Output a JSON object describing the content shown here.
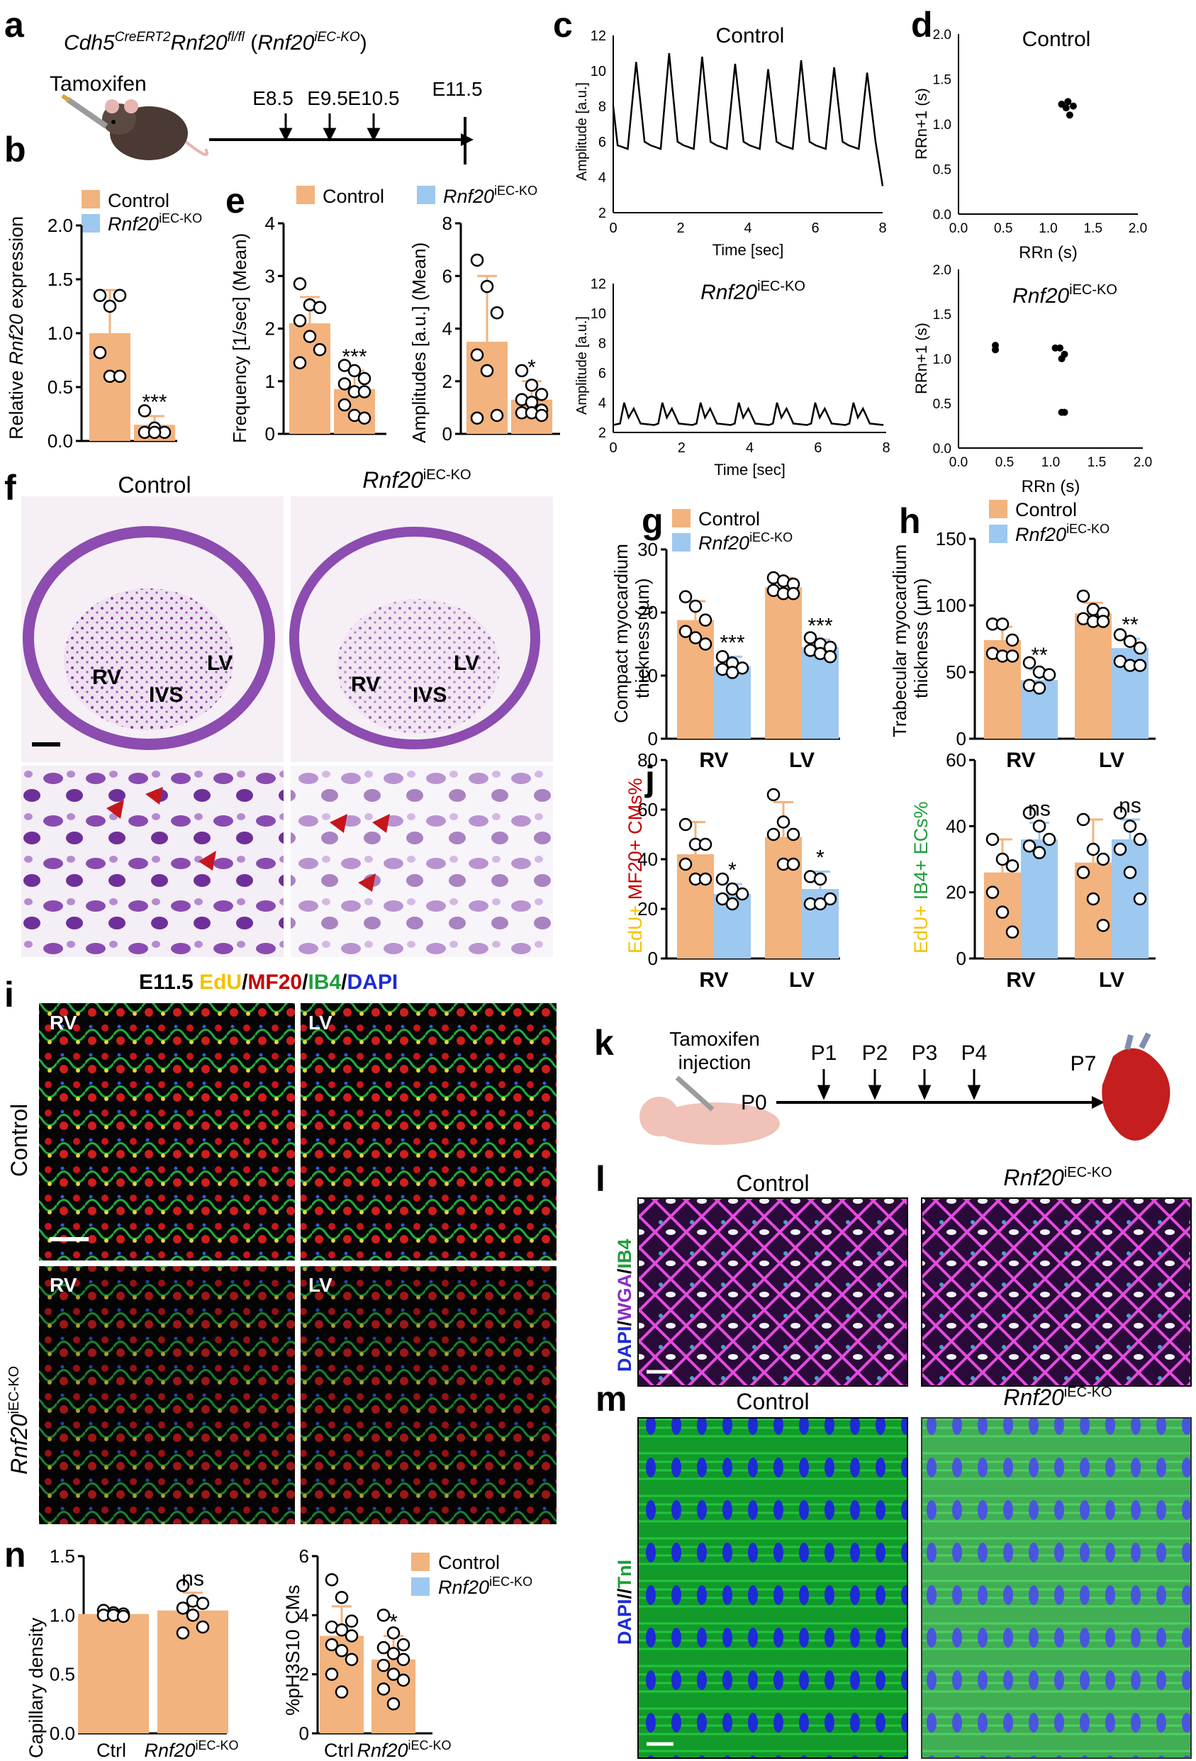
{
  "colors": {
    "control": "#F2B37E",
    "ko": "#9DC8F0",
    "edu": "#F2C200",
    "mf20": "#C40000",
    "ib4": "#1E9E3A",
    "dapi": "#1E2BD8",
    "wga": "#8B2FC9"
  },
  "panels": {
    "a": "a",
    "b": "b",
    "c": "c",
    "d": "d",
    "e": "e",
    "f": "f",
    "g": "g",
    "h": "h",
    "i": "i",
    "j": "j",
    "k": "k",
    "l": "l",
    "m": "m",
    "n": "n"
  },
  "panel_a": {
    "genotype_italic": "Cdh5",
    "genotype_sup1": "CreERT2",
    "genotype_mid": "Rnf20",
    "genotype_sup2": "fl/fl",
    "genotype_paren_open": " (",
    "genotype_paren_gene": "Rnf20",
    "genotype_paren_sup": "iEC-KO",
    "genotype_paren_close": ")",
    "tamoxifen": "Tamoxifen",
    "timepoints": [
      "E8.5",
      "E9.5",
      "E10.5"
    ],
    "endpoint": "E11.5"
  },
  "legend": {
    "control": "Control",
    "ko_gene": "Rnf20",
    "ko_sup": "iEC-KO"
  },
  "panel_b": {
    "ylabel_pre": "Relative ",
    "ylabel_gene": "Rnf20",
    "ylabel_post": " expression",
    "yticks": [
      "0.0",
      "0.5",
      "1.0",
      "1.5",
      "2.0"
    ],
    "sig": "***"
  },
  "panel_e": {
    "ylabel_freq": "Frequency [1/sec] (Mean)",
    "yticks_freq": [
      "0",
      "1",
      "2",
      "3",
      "4"
    ],
    "sig_freq": "***",
    "ylabel_amp": "Amplitudes [a.u.] (Mean)",
    "yticks_amp": [
      "0",
      "2",
      "4",
      "6",
      "8"
    ],
    "sig_amp": "*"
  },
  "panel_c": {
    "title_control": "Control",
    "title_ko_gene": "Rnf20",
    "title_ko_sup": "iEC-KO",
    "ylabel": "Amplitude [a.u.]",
    "xlabel": "Time [sec]",
    "yticks": [
      "2",
      "4",
      "6",
      "8",
      "10",
      "12"
    ],
    "xticks": [
      "0",
      "2",
      "4",
      "6",
      "8"
    ]
  },
  "panel_d": {
    "title_control": "Control",
    "title_ko_gene": "Rnf20",
    "title_ko_sup": "iEC-KO",
    "ylabel": "RRn+1 (s)",
    "xlabel": "RRn (s)",
    "ticks": [
      "0.0",
      "0.5",
      "1.0",
      "1.5",
      "2.0"
    ]
  },
  "panel_f": {
    "title_control": "Control",
    "title_ko_gene": "Rnf20",
    "title_ko_sup": "iEC-KO",
    "labels": [
      "RV",
      "IVS",
      "LV"
    ]
  },
  "panel_g": {
    "ylabel1": "Compact myocardium",
    "ylabel2": "thickness (µm)",
    "yticks": [
      "0",
      "10",
      "20",
      "30"
    ],
    "categories": [
      "RV",
      "LV"
    ],
    "sig": [
      "***",
      "***"
    ]
  },
  "panel_h": {
    "ylabel1": "Trabecular myocardium",
    "ylabel2": "thickness (µm)",
    "yticks": [
      "0",
      "50",
      "100",
      "150"
    ],
    "categories": [
      "RV",
      "LV"
    ],
    "sig": [
      "**",
      "**"
    ]
  },
  "panel_j": {
    "ylabel_edu": "EdU+ ",
    "ylabel_mf20": "MF20+ ",
    "ylabel_cms": "CMs%",
    "yticks": [
      "0",
      "20",
      "40",
      "60",
      "80"
    ],
    "categories": [
      "RV",
      "LV"
    ],
    "sig": [
      "*",
      "*"
    ]
  },
  "panel_j2": {
    "ylabel_edu": "EdU+ ",
    "ylabel_ib4": "IB4+ ",
    "ylabel_ecs": "ECs%",
    "yticks": [
      "0",
      "20",
      "40",
      "60"
    ],
    "categories": [
      "RV",
      "LV"
    ],
    "sig": [
      "ns",
      "ns"
    ]
  },
  "panel_i": {
    "title_stage": "E11.5 ",
    "title_edu": "EdU",
    "title_mf20": "MF20",
    "title_ib4": "IB4",
    "title_dapi": "DAPI",
    "slash": "/",
    "row_control": "Control",
    "row_ko_gene": "Rnf20",
    "row_ko_sup": "iEC-KO",
    "tiles": [
      "RV",
      "LV",
      "RV",
      "LV"
    ]
  },
  "panel_k": {
    "injection1": "Tamoxifen",
    "injection2": "injection",
    "p0": "P0",
    "timepoints": [
      "P1",
      "P2",
      "P3",
      "P4"
    ],
    "endpoint": "P7"
  },
  "panel_l": {
    "title_control": "Control",
    "title_ko_gene": "Rnf20",
    "title_ko_sup": "iEC-KO",
    "side_dapi": "DAPI",
    "side_wga": "WGA",
    "side_ib4": "IB4",
    "slash": "/"
  },
  "panel_m": {
    "title_control": "Control",
    "title_ko_gene": "Rnf20",
    "title_ko_sup": "iEC-KO",
    "side_dapi": "DAPI",
    "side_tni": "TnI",
    "slash": "//"
  },
  "panel_n": {
    "ylabel_cap": "Capillary density",
    "yticks_cap": [
      "0.0",
      "0.5",
      "1.0",
      "1.5"
    ],
    "sig_cap": "ns",
    "xcat_ctrl": "Ctrl",
    "xcat_ko_gene": "Rnf20",
    "xcat_ko_sup": "iEC-KO",
    "ylabel_h3": "%pH3S10 CMs",
    "yticks_h3": [
      "0",
      "2",
      "4",
      "6"
    ],
    "sig_h3": "*"
  },
  "chart_data": [
    {
      "id": "b",
      "type": "bar",
      "categories": [
        "Control",
        "Rnf20 iEC-KO"
      ],
      "values": [
        1.0,
        0.15
      ],
      "errors": [
        0.4,
        0.08
      ],
      "ylim": [
        0,
        2
      ],
      "points": [
        [
          1.35,
          1.25,
          1.35,
          0.82,
          0.6,
          0.6
        ],
        [
          0.28,
          0.12,
          0.08,
          0.08,
          0.08
        ]
      ]
    },
    {
      "id": "e1",
      "type": "bar",
      "categories": [
        "Control",
        "Rnf20 iEC-KO"
      ],
      "values": [
        2.1,
        0.85
      ],
      "errors": [
        0.5,
        0.35
      ],
      "ylim": [
        0,
        4
      ],
      "points": [
        [
          2.85,
          2.45,
          2.4,
          2.15,
          1.85,
          1.6,
          1.35
        ],
        [
          1.3,
          1.2,
          1.05,
          0.95,
          0.8,
          0.8,
          0.55,
          0.35,
          0.3
        ]
      ]
    },
    {
      "id": "e2",
      "type": "bar",
      "categories": [
        "Control",
        "Rnf20 iEC-KO"
      ],
      "values": [
        3.5,
        1.3
      ],
      "errors": [
        2.5,
        0.7
      ],
      "ylim": [
        0,
        8
      ],
      "points": [
        [
          6.6,
          5.6,
          4.6,
          3.0,
          2.4,
          0.7,
          0.6
        ],
        [
          2.4,
          1.85,
          1.5,
          1.3,
          1.2,
          0.9,
          0.8,
          0.8,
          0.7
        ]
      ]
    },
    {
      "id": "c_control",
      "type": "line",
      "x_range": [
        0,
        8
      ],
      "ylim": [
        2,
        12
      ],
      "series": [
        {
          "values": "periodic, ~8 beats, peaks ~9.5-11, troughs ~5.5"
        }
      ]
    },
    {
      "id": "c_ko",
      "type": "line",
      "x_range": [
        0,
        8
      ],
      "ylim": [
        2,
        12
      ],
      "series": [
        {
          "values": "periodic, ~7 beats, peaks ~3.7-4.1, baseline ~2.5"
        }
      ]
    },
    {
      "id": "d_control",
      "type": "scatter",
      "xlim": [
        0,
        2
      ],
      "ylim": [
        0,
        2
      ],
      "x": [
        1.15,
        1.2,
        1.22,
        1.28,
        1.24
      ],
      "y": [
        1.22,
        1.18,
        1.25,
        1.2,
        1.1
      ]
    },
    {
      "id": "d_ko",
      "type": "scatter",
      "xlim": [
        0,
        2
      ],
      "ylim": [
        0,
        2
      ],
      "x": [
        0.4,
        0.4,
        1.05,
        1.1,
        1.12,
        1.12,
        1.15,
        1.15
      ],
      "y": [
        1.15,
        1.1,
        1.12,
        1.12,
        1.0,
        0.4,
        1.05,
        0.4
      ]
    },
    {
      "id": "g",
      "type": "bar",
      "categories": [
        "RV",
        "LV"
      ],
      "series": [
        {
          "name": "Control",
          "values": [
            18.8,
            24
          ],
          "errors": [
            3,
            1.5
          ]
        },
        {
          "name": "Rnf20 iEC-KO",
          "values": [
            11.5,
            14.5
          ],
          "errors": [
            1.5,
            1.2
          ]
        }
      ],
      "ylim": [
        0,
        30
      ],
      "points": [
        [
          [
            22.5,
            21,
            18.8,
            17,
            16,
            15
          ],
          [
            25.5,
            25,
            24.5,
            23.5,
            23,
            23
          ]
        ],
        [
          [
            13,
            12,
            11.2,
            11,
            10.5
          ],
          [
            16,
            15,
            14.5,
            14,
            13.5,
            13
          ]
        ]
      ]
    },
    {
      "id": "h",
      "type": "bar",
      "categories": [
        "RV",
        "LV"
      ],
      "series": [
        {
          "name": "Control",
          "values": [
            74,
            94
          ],
          "errors": [
            10,
            8
          ]
        },
        {
          "name": "Rnf20 iEC-KO",
          "values": [
            44,
            68
          ],
          "errors": [
            8,
            7
          ]
        }
      ],
      "ylim": [
        0,
        150
      ],
      "points": [
        [
          [
            86,
            86,
            74,
            64,
            62,
            62
          ],
          [
            107,
            97,
            94,
            90,
            88,
            88
          ]
        ],
        [
          [
            57,
            50,
            48,
            40,
            38
          ],
          [
            78,
            73,
            68,
            58,
            55,
            55
          ]
        ]
      ]
    },
    {
      "id": "j",
      "type": "bar",
      "categories": [
        "RV",
        "LV"
      ],
      "series": [
        {
          "name": "Control",
          "values": [
            42,
            49
          ],
          "errors": [
            13,
            14
          ]
        },
        {
          "name": "Rnf20 iEC-KO",
          "values": [
            26,
            28
          ],
          "errors": [
            4,
            7
          ]
        }
      ],
      "ylim": [
        0,
        80
      ],
      "points": [
        [
          [
            54,
            46,
            46,
            38,
            32,
            32
          ],
          [
            66,
            55,
            50,
            50,
            38,
            38
          ]
        ],
        [
          [
            32,
            28,
            26,
            24,
            22
          ],
          [
            33,
            32,
            24,
            22,
            22
          ]
        ]
      ]
    },
    {
      "id": "j2",
      "type": "bar",
      "categories": [
        "RV",
        "LV"
      ],
      "series": [
        {
          "name": "Control",
          "values": [
            26,
            29
          ],
          "errors": [
            10,
            13
          ]
        },
        {
          "name": "Rnf20 iEC-KO",
          "values": [
            36,
            36
          ],
          "errors": [
            5,
            6
          ]
        }
      ],
      "ylim": [
        0,
        60
      ],
      "points": [
        [
          [
            36,
            30,
            28,
            20,
            14,
            8
          ],
          [
            42,
            33,
            30,
            26,
            18,
            10
          ]
        ],
        [
          [
            44,
            40,
            36,
            34,
            32
          ],
          [
            44,
            40,
            36,
            33,
            26,
            18
          ]
        ]
      ]
    },
    {
      "id": "n1",
      "type": "bar",
      "categories": [
        "Ctrl",
        "Rnf20 iEC-KO"
      ],
      "values": [
        1.01,
        1.04
      ],
      "errors": [
        0.03,
        0.15
      ],
      "ylim": [
        0,
        1.5
      ],
      "points": [
        [
          1.04,
          1.02,
          1.01,
          1.0,
          1.0,
          0.99
        ],
        [
          1.25,
          1.12,
          1.1,
          1.06,
          1.0,
          0.9,
          0.85
        ]
      ]
    },
    {
      "id": "n2",
      "type": "bar",
      "categories": [
        "Ctrl",
        "Rnf20 iEC-KO"
      ],
      "values": [
        3.3,
        2.5
      ],
      "errors": [
        1.0,
        0.8
      ],
      "ylim": [
        0,
        6
      ],
      "points": [
        [
          5.2,
          4.6,
          3.8,
          3.6,
          3.5,
          3.3,
          3.0,
          2.8,
          2.5,
          2.0,
          1.4
        ],
        [
          4.0,
          3.4,
          3.0,
          2.9,
          2.7,
          2.5,
          2.3,
          2.0,
          1.8,
          1.5,
          1.0
        ]
      ]
    }
  ]
}
